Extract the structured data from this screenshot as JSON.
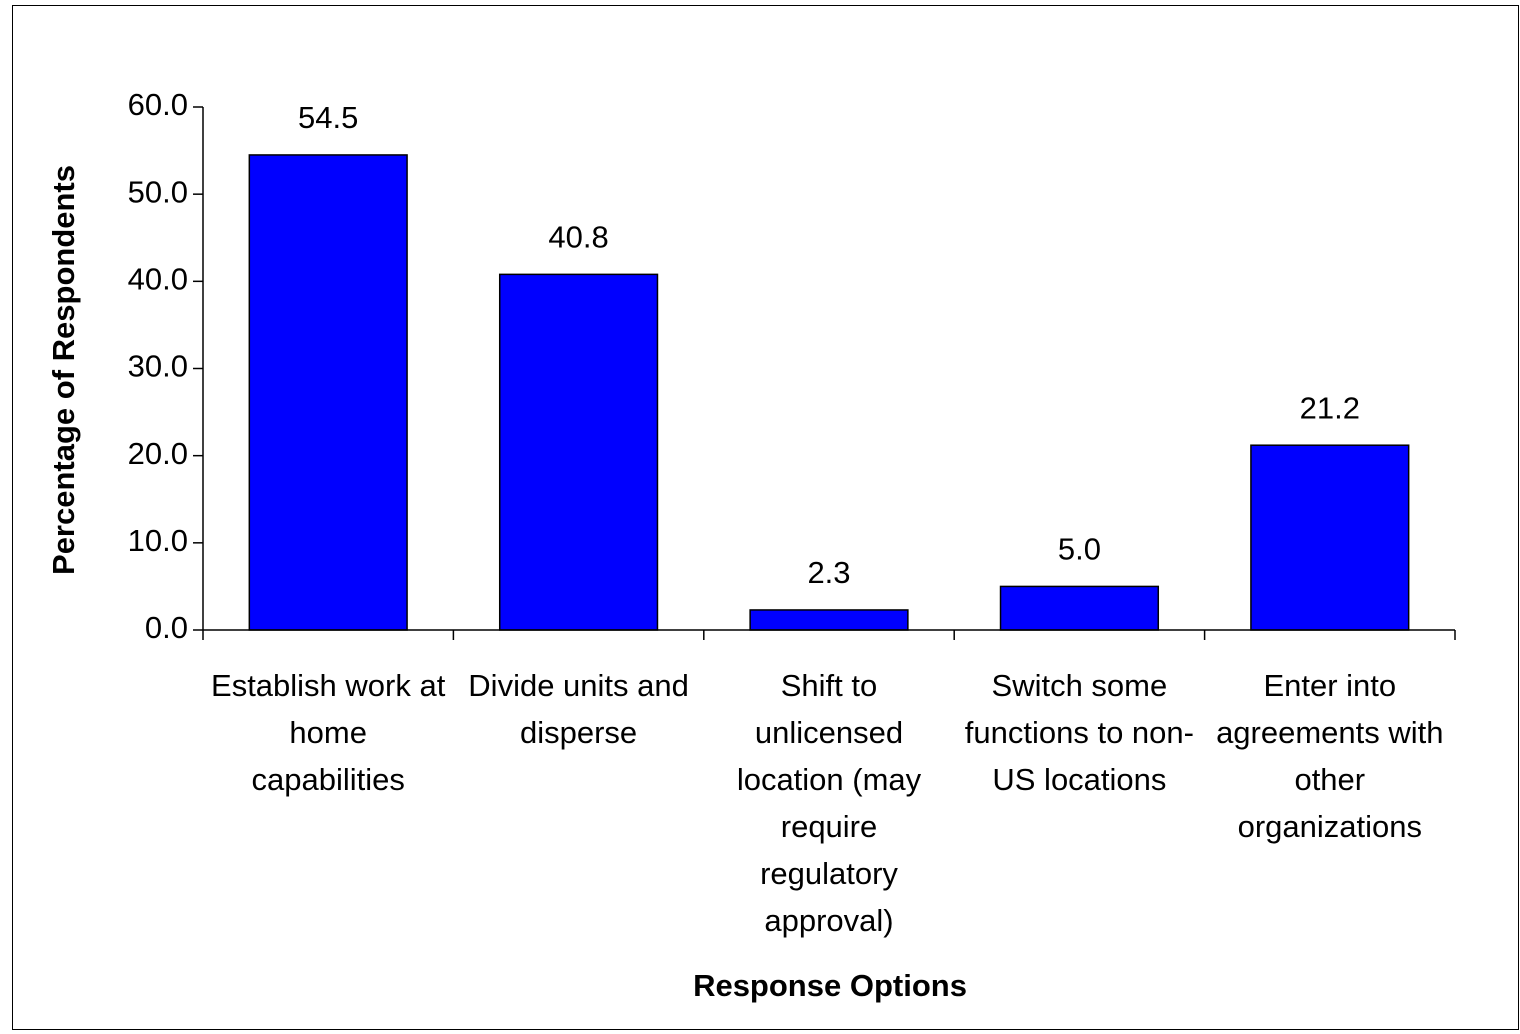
{
  "chart_data": {
    "type": "bar",
    "categories": [
      "Establish work at home capabilities",
      "Divide units and disperse",
      "Shift to unlicensed location (may require regulatory approval)",
      "Switch some functions to non-US locations",
      "Enter into agreements with other organizations"
    ],
    "values": [
      54.5,
      40.8,
      2.3,
      5.0,
      21.2
    ],
    "value_labels": [
      "54.5",
      "40.8",
      "2.3",
      "5.0",
      "21.2"
    ],
    "color": "#0000ff",
    "xlabel": "Response Options",
    "ylabel": "Percentage of Respondents",
    "ylim": [
      0,
      60
    ],
    "yticks": [
      {
        "value": 0,
        "label": "0.0"
      },
      {
        "value": 10,
        "label": "10.0"
      },
      {
        "value": 20,
        "label": "20.0"
      },
      {
        "value": 30,
        "label": "30.0"
      },
      {
        "value": 40,
        "label": "40.0"
      },
      {
        "value": 50,
        "label": "50.0"
      },
      {
        "value": 60,
        "label": "60.0"
      }
    ],
    "grid": false
  }
}
